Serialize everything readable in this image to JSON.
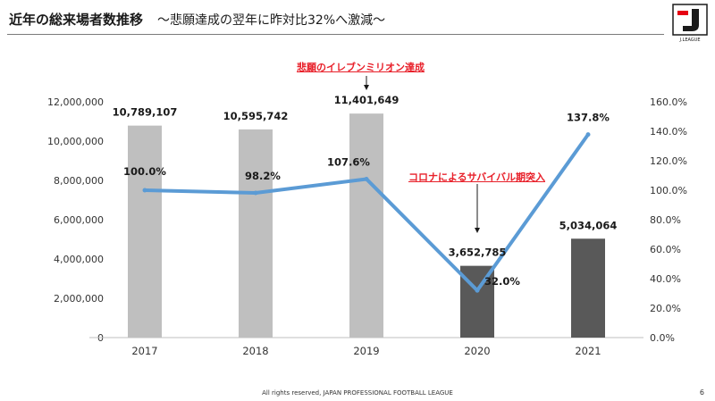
{
  "header": {
    "title": "近年の総来場者数推移",
    "subtitle": "～悲願達成の翌年に昨対比32%へ激減～"
  },
  "logo": {
    "icon": "j-league-logo-icon",
    "text": "J.LEAGUE"
  },
  "annotations": {
    "top": "悲願のイレブンミリオン達成",
    "mid": "コロナによるサバイバル期突入"
  },
  "footer": {
    "copyright": "All rights reserved, JAPAN PROFESSIONAL FOOTBALL LEAGUE",
    "page_number": "6"
  },
  "chart_data": {
    "type": "bar",
    "categories": [
      "2017",
      "2018",
      "2019",
      "2020",
      "2021"
    ],
    "series": [
      {
        "type": "bar",
        "values": [
          10789107,
          10595742,
          11401649,
          3652785,
          5034064
        ],
        "labels": [
          "10,789,107",
          "10,595,742",
          "11,401,649",
          "3,652,785",
          "5,034,064"
        ],
        "colors": [
          "#bfbfbf",
          "#bfbfbf",
          "#bfbfbf",
          "#595959",
          "#595959"
        ],
        "axis": "left"
      },
      {
        "type": "line",
        "values": [
          100.0,
          98.2,
          107.6,
          32.0,
          137.8
        ],
        "labels": [
          "100.0%",
          "98.2%",
          "107.6%",
          "32.0%",
          "137.8%"
        ],
        "color": "#5b9bd5",
        "axis": "right"
      }
    ],
    "ylim_left": [
      0,
      12000000
    ],
    "yticks_left": [
      "0",
      "2,000,000",
      "4,000,000",
      "6,000,000",
      "8,000,000",
      "10,000,000",
      "12,000,000"
    ],
    "ylim_right": [
      0,
      160
    ],
    "yticks_right": [
      "0.0%",
      "20.0%",
      "40.0%",
      "60.0%",
      "80.0%",
      "100.0%",
      "120.0%",
      "140.0%",
      "160.0%"
    ],
    "grid": false,
    "legend": "none"
  }
}
